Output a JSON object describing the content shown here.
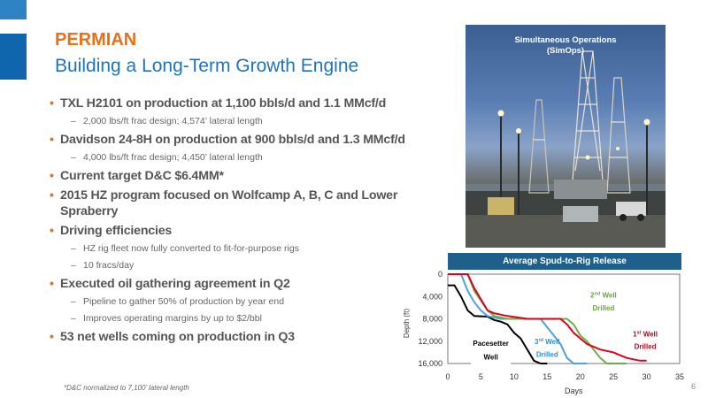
{
  "header": {
    "title": "PERMIAN",
    "subtitle": "Building a Long-Term Growth Engine"
  },
  "bullets": [
    {
      "text": "TXL H2101 on production at 1,100 bbls/d and 1.1 MMcf/d",
      "sub": [
        "2,000 lbs/ft frac design;  4,574’ lateral length"
      ]
    },
    {
      "text": "Davidson 24-8H on production at 900 bbls/d and 1.3 MMcf/d",
      "sub": [
        "4,000 lbs/ft  frac design;  4,450’ lateral length"
      ]
    },
    {
      "text": "Current target D&C $6.4MM*",
      "sub": []
    },
    {
      "text": "2015 HZ program focused on Wolfcamp A, B, C and Lower Spraberry",
      "sub": []
    },
    {
      "text": "Driving efficiencies",
      "sub": [
        "HZ rig fleet now fully converted to fit-for-purpose rigs",
        "10 fracs/day"
      ]
    },
    {
      "text": "Executed oil gathering agreement in Q2",
      "sub": [
        "Pipeline to gather 50% of production by year end",
        "Improves operating margins by up to $2/bbl"
      ]
    },
    {
      "text": "53 net wells coming on production in Q3",
      "sub": []
    }
  ],
  "footnote": "*D&C normalized  to 7,100’ lateral length",
  "page_number": "6",
  "photo": {
    "caption_line1": "Simultaneous Operations",
    "caption_line2": "(SimOps)"
  },
  "chart_header": "Average Spud-to-Rig Release",
  "colors": {
    "accent": "#e8701a",
    "brand_blue": "#1f73b7",
    "chart_header": "#1f5f8b"
  },
  "chart_data": {
    "type": "line",
    "xlabel": "Days",
    "ylabel": "Depth (ft)",
    "xlim": [
      0,
      35
    ],
    "ylim": [
      0,
      16000
    ],
    "x_ticks": [
      0,
      5,
      10,
      15,
      20,
      25,
      30,
      35
    ],
    "y_ticks": [
      0,
      4000,
      8000,
      12000,
      16000
    ],
    "y_tick_labels": [
      "0",
      "4,000",
      "8,000",
      "12,000",
      "16,000"
    ],
    "series": [
      {
        "name": "Pacesetter Well",
        "color": "#000000",
        "points": [
          [
            0,
            2000
          ],
          [
            1,
            2000
          ],
          [
            2,
            4000
          ],
          [
            3,
            6500
          ],
          [
            4,
            7500
          ],
          [
            6,
            7600
          ],
          [
            7,
            8200
          ],
          [
            8,
            8500
          ],
          [
            9,
            9000
          ],
          [
            10,
            10500
          ],
          [
            11,
            11500
          ],
          [
            12,
            13500
          ],
          [
            13,
            15500
          ],
          [
            14,
            16000
          ],
          [
            15,
            16000
          ]
        ]
      },
      {
        "name": "3rd Well Drilled",
        "color": "#4aa3df",
        "points": [
          [
            0,
            0
          ],
          [
            2,
            0
          ],
          [
            3,
            3000
          ],
          [
            4,
            5000
          ],
          [
            5,
            6500
          ],
          [
            6,
            7500
          ],
          [
            8,
            8000
          ],
          [
            14,
            8000
          ],
          [
            15,
            9500
          ],
          [
            16,
            11000
          ],
          [
            17,
            12500
          ],
          [
            18,
            15000
          ],
          [
            19,
            16000
          ],
          [
            21,
            16000
          ]
        ]
      },
      {
        "name": "2nd Well Drilled",
        "color": "#70ad47",
        "points": [
          [
            0,
            0
          ],
          [
            3,
            0
          ],
          [
            4,
            3000
          ],
          [
            6,
            6500
          ],
          [
            7,
            7500
          ],
          [
            9,
            8000
          ],
          [
            18,
            8000
          ],
          [
            19,
            9000
          ],
          [
            20,
            11000
          ],
          [
            21,
            12000
          ],
          [
            22,
            13500
          ],
          [
            23,
            15000
          ],
          [
            24,
            16000
          ],
          [
            27,
            16000
          ]
        ]
      },
      {
        "name": "1st Well Drilled",
        "color": "#e0001b",
        "points": [
          [
            0,
            0
          ],
          [
            3,
            0
          ],
          [
            4,
            2500
          ],
          [
            5,
            4500
          ],
          [
            6,
            6500
          ],
          [
            7,
            7000
          ],
          [
            9,
            7500
          ],
          [
            12,
            8000
          ],
          [
            17,
            8000
          ],
          [
            18,
            9000
          ],
          [
            19,
            10500
          ],
          [
            20,
            11500
          ],
          [
            21,
            12500
          ],
          [
            23,
            13500
          ],
          [
            25,
            14000
          ],
          [
            27,
            15000
          ],
          [
            29,
            15500
          ],
          [
            30,
            15500
          ]
        ]
      }
    ],
    "labels": {
      "pacesetter_line1": "Pacesetter",
      "pacesetter_line2": "Well",
      "third_sup": "rd",
      "third_pre": "3",
      "third_post": " Well",
      "third_line2": "Drilled",
      "second_pre": "2",
      "second_sup": "nd",
      "second_post": " Well",
      "second_line2": "Drilled",
      "first_pre": "1",
      "first_sup": "st",
      "first_post": " Well",
      "first_line2": "Drilled"
    }
  }
}
